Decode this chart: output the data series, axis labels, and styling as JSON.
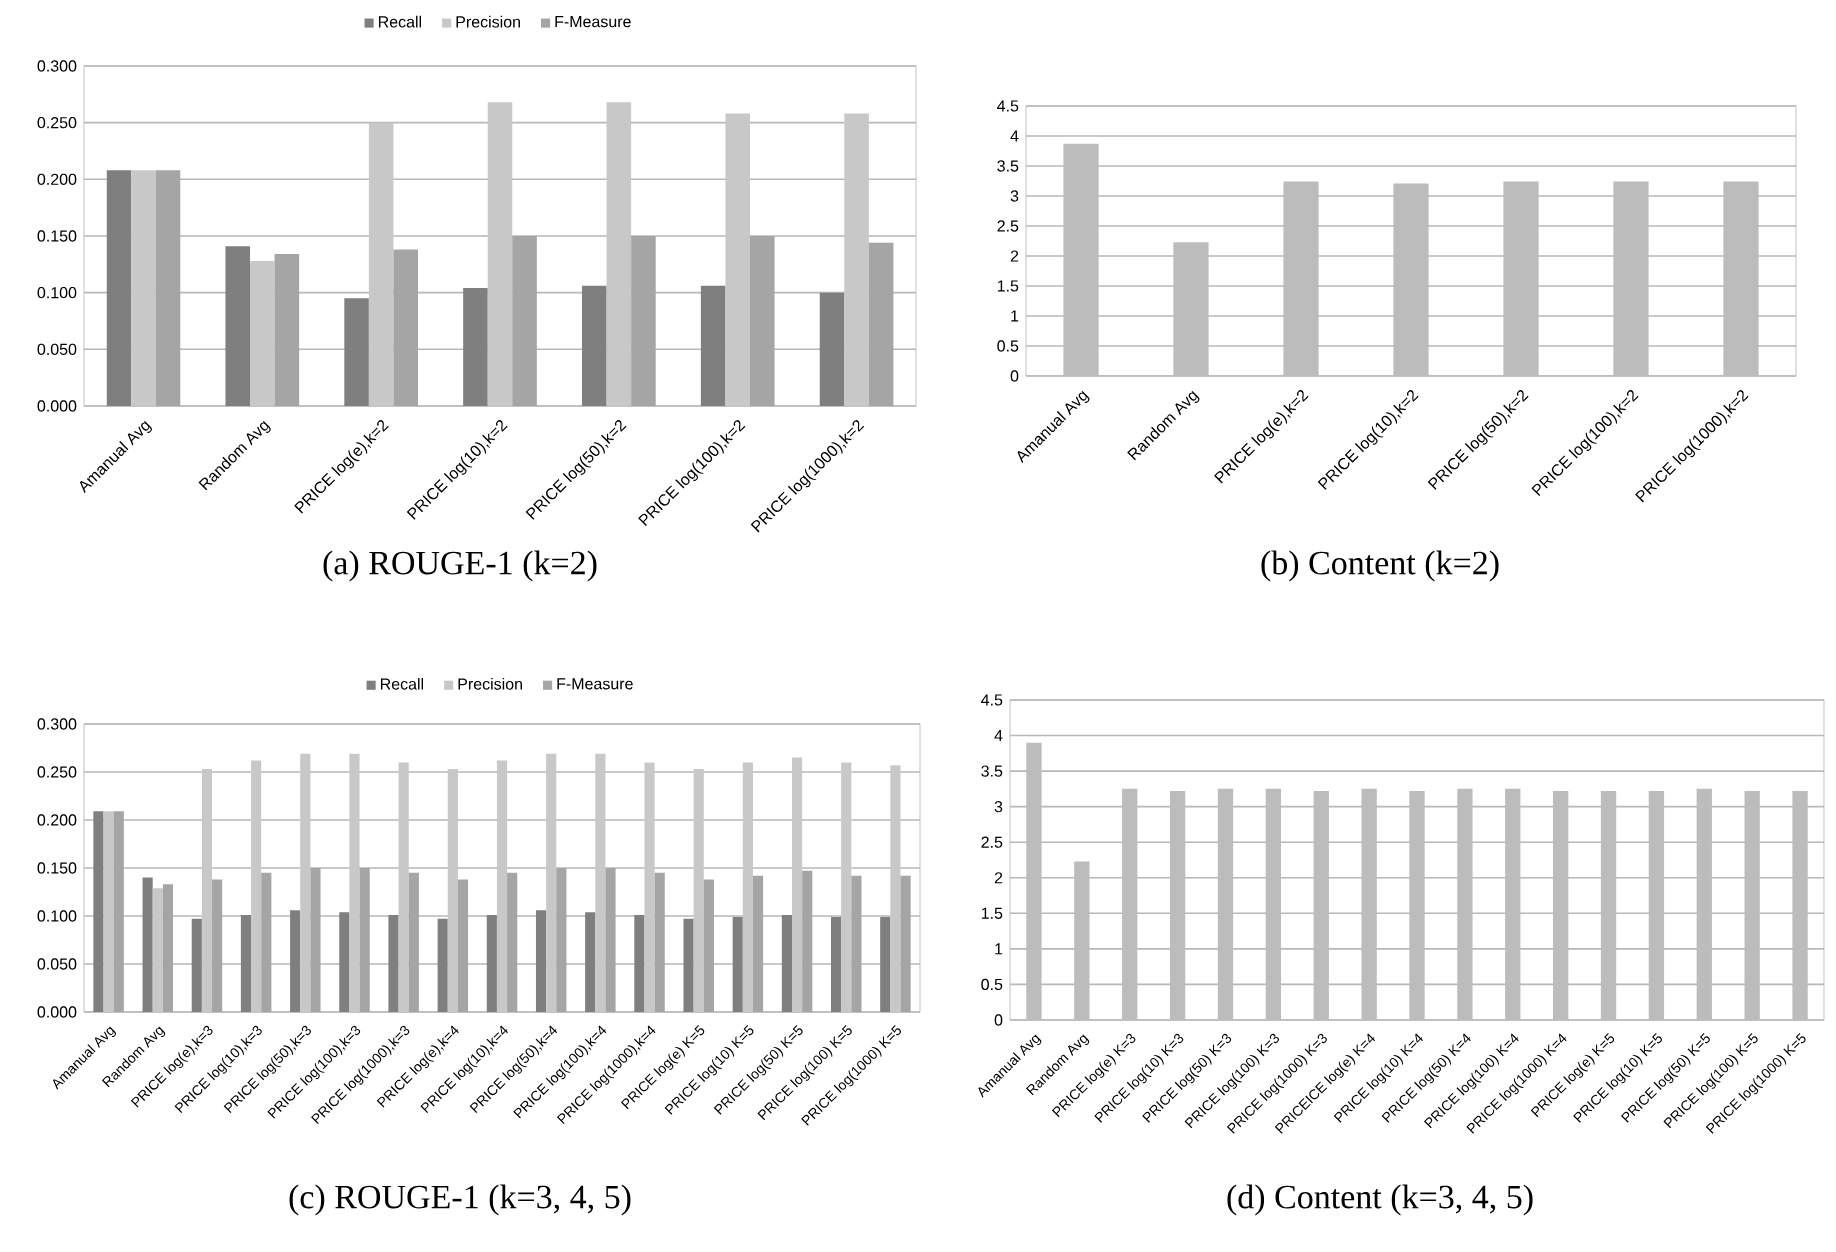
{
  "chart_data": [
    {
      "type": "bar",
      "title": "(a) ROUGE-1 (k=2)",
      "categories": [
        "Amanual Avg",
        "Random Avg",
        "PRICE log(e),k=2",
        "PRICE log(10),k=2",
        "PRICE log(50),k=2",
        "PRICE log(100),k=2",
        "PRICE log(1000),k=2"
      ],
      "series": [
        {
          "name": "Recall",
          "color": "#7f7f7f",
          "values": [
            0.208,
            0.141,
            0.095,
            0.104,
            0.106,
            0.106,
            0.1
          ]
        },
        {
          "name": "Precision",
          "color": "#c8c8c8",
          "values": [
            0.208,
            0.128,
            0.25,
            0.268,
            0.268,
            0.258,
            0.258
          ]
        },
        {
          "name": "F-Measure",
          "color": "#a5a5a5",
          "values": [
            0.208,
            0.134,
            0.138,
            0.15,
            0.15,
            0.15,
            0.144
          ]
        }
      ],
      "ylim": [
        0,
        0.3
      ],
      "yticks": [
        {
          "value": 0,
          "label": "0.000"
        },
        {
          "value": 0.05,
          "label": "0.050"
        },
        {
          "value": 0.1,
          "label": "0.100"
        },
        {
          "value": 0.15,
          "label": "0.150"
        },
        {
          "value": 0.2,
          "label": "0.200"
        },
        {
          "value": 0.25,
          "label": "0.250"
        },
        {
          "value": 0.3,
          "label": "0.300"
        }
      ],
      "grid": "y",
      "legend": "top"
    },
    {
      "type": "bar",
      "title": "(b) Content (k=2)",
      "categories": [
        "Amanual Avg",
        "Random Avg",
        "PRICE log(e),k=2",
        "PRICE log(10),k=2",
        "PRICE log(50),k=2",
        "PRICE log(100),k=2",
        "PRICE log(1000),k=2"
      ],
      "color": "#bcbcbc",
      "values": [
        3.87,
        2.23,
        3.24,
        3.21,
        3.24,
        3.24,
        3.24
      ],
      "ylim": [
        0,
        4.5
      ],
      "yticks": [
        0,
        0.5,
        1,
        1.5,
        2,
        2.5,
        3,
        3.5,
        4,
        4.5
      ],
      "grid": "y"
    },
    {
      "type": "bar",
      "title": "(c) ROUGE-1 (k=3, 4, 5)",
      "categories": [
        "Amanual Avg",
        "Random Avg",
        "PRICE log(e),k=3",
        "PRICE log(10),k=3",
        "PRICE log(50),k=3",
        "PRICE log(100),k=3",
        "PRICE log(1000),k=3",
        "PRICE log(e),k=4",
        "PRICE log(10),k=4",
        "PRICE log(50),k=4",
        "PRICE log(100),k=4",
        "PRICE log(1000),k=4",
        "PRICE log(e) K=5",
        "PRICE log(10) K=5",
        "PRICE log(50) K=5",
        "PRICE log(100) K=5",
        "PRICE log(1000) K=5"
      ],
      "series": [
        {
          "name": "Recall",
          "color": "#7f7f7f",
          "values": [
            0.209,
            0.14,
            0.097,
            0.101,
            0.106,
            0.104,
            0.101,
            0.097,
            0.101,
            0.106,
            0.104,
            0.101,
            0.097,
            0.099,
            0.101,
            0.099,
            0.099
          ]
        },
        {
          "name": "Precision",
          "color": "#c8c8c8",
          "values": [
            0.209,
            0.129,
            0.253,
            0.262,
            0.269,
            0.269,
            0.26,
            0.253,
            0.262,
            0.269,
            0.269,
            0.26,
            0.253,
            0.26,
            0.265,
            0.26,
            0.257
          ]
        },
        {
          "name": "F-Measure",
          "color": "#a5a5a5",
          "values": [
            0.209,
            0.133,
            0.138,
            0.145,
            0.15,
            0.15,
            0.145,
            0.138,
            0.145,
            0.15,
            0.15,
            0.145,
            0.138,
            0.142,
            0.147,
            0.142,
            0.142
          ]
        }
      ],
      "ylim": [
        0,
        0.3
      ],
      "yticks": [
        {
          "value": 0,
          "label": "0.000"
        },
        {
          "value": 0.05,
          "label": "0.050"
        },
        {
          "value": 0.1,
          "label": "0.100"
        },
        {
          "value": 0.15,
          "label": "0.150"
        },
        {
          "value": 0.2,
          "label": "0.200"
        },
        {
          "value": 0.25,
          "label": "0.250"
        },
        {
          "value": 0.3,
          "label": "0.300"
        }
      ],
      "grid": "y",
      "legend": "top"
    },
    {
      "type": "bar",
      "title": "(d) Content (k=3, 4, 5)",
      "categories": [
        "Amanual Avg",
        "Random Avg",
        "PRICE log(e) K=3",
        "PRICE log(10) K=3",
        "PRICE log(50) K=3",
        "PRICE log(100) K=3",
        "PRICE log(1000) K=3",
        "PRICEICE log(e) K=4",
        "PRICE log(10) K=4",
        "PRICE log(50) K=4",
        "PRICE log(100) K=4",
        "PRICE log(1000) K=4",
        "PRICE log(e) K=5",
        "PRICE log(10) K=5",
        "PRICE log(50) K=5",
        "PRICE log(100) K=5",
        "PRICE log(1000) K=5"
      ],
      "color": "#bcbcbc",
      "values": [
        3.9,
        2.23,
        3.25,
        3.22,
        3.25,
        3.25,
        3.22,
        3.25,
        3.22,
        3.25,
        3.25,
        3.22,
        3.22,
        3.22,
        3.25,
        3.22,
        3.22
      ],
      "ylim": [
        0,
        4.5
      ],
      "yticks": [
        0,
        0.5,
        1,
        1.5,
        2,
        2.5,
        3,
        3.5,
        4,
        4.5
      ],
      "grid": "y"
    }
  ]
}
